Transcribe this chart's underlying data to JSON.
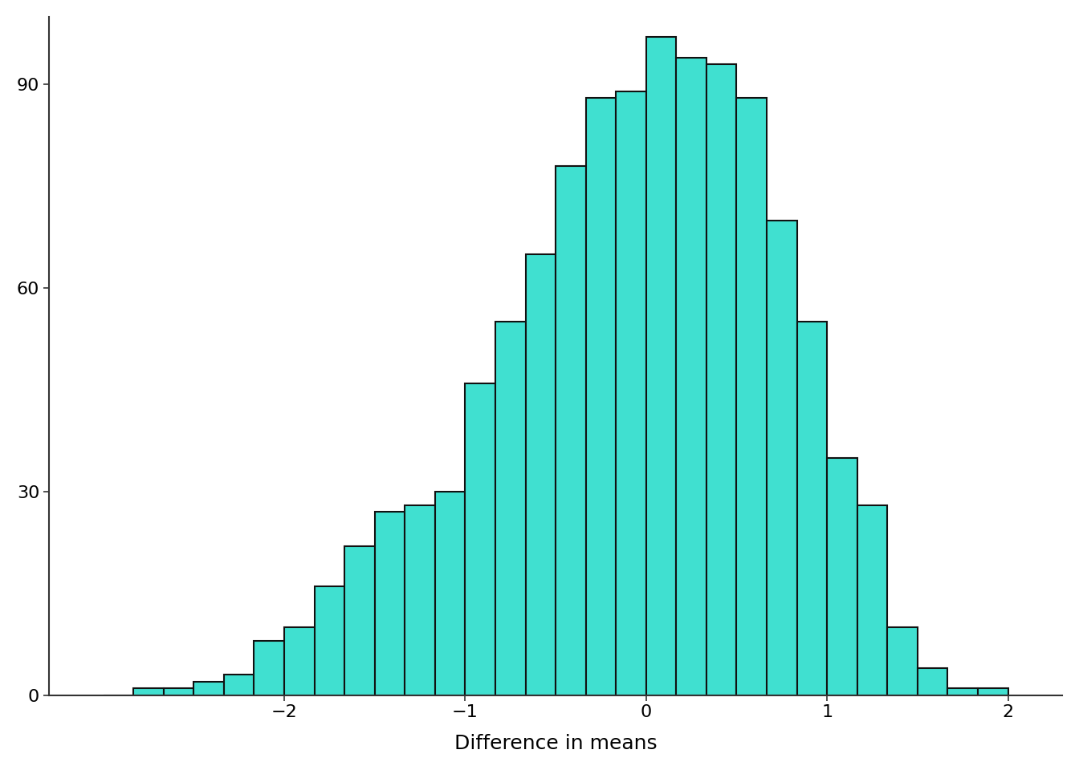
{
  "title": "",
  "xlabel": "Difference in means",
  "ylabel": "",
  "bar_color": "#40E0D0",
  "bar_edge_color": "#111111",
  "background_color": "#ffffff",
  "bar_heights": [
    0,
    1,
    1,
    2,
    3,
    8,
    10,
    16,
    22,
    27,
    28,
    30,
    46,
    55,
    65,
    78,
    88,
    89,
    97,
    94,
    93,
    88,
    70,
    55,
    35,
    28,
    10,
    4,
    1,
    1
  ],
  "x_start": -3.0,
  "x_end": 2.0,
  "xlim": [
    -3.3,
    2.3
  ],
  "ylim": [
    0,
    100
  ],
  "yticks": [
    0,
    30,
    60,
    90
  ],
  "xticks": [
    -2,
    -1,
    0,
    1,
    2
  ],
  "xlabel_fontsize": 18,
  "tick_fontsize": 16,
  "bar_edge_width": 1.5
}
